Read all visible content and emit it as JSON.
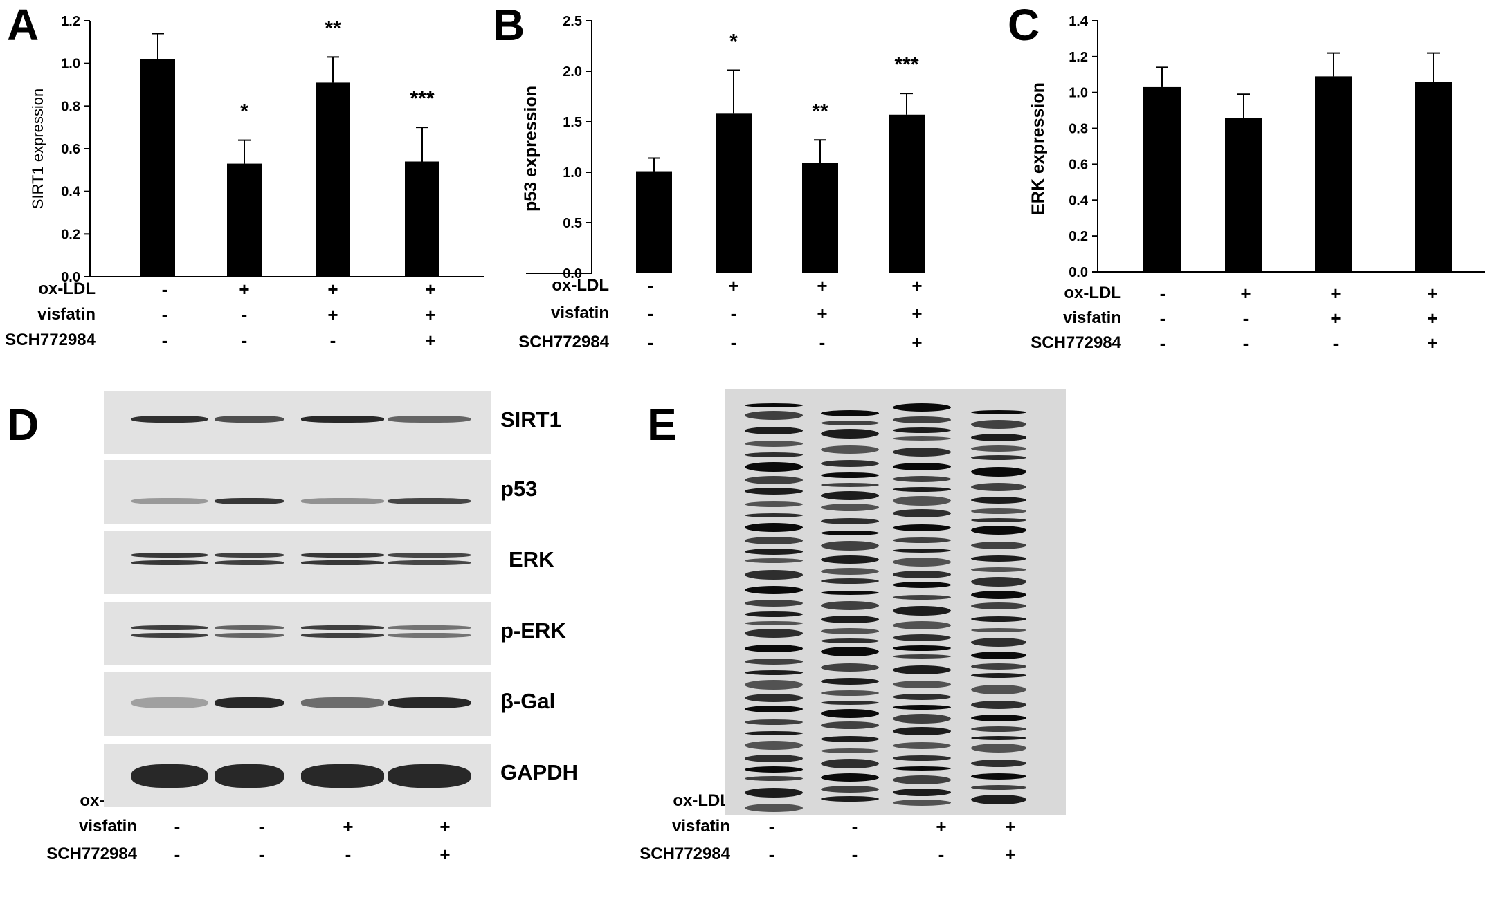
{
  "panels": {
    "A": "A",
    "B": "B",
    "C": "C",
    "D": "D",
    "E": "E"
  },
  "treatment_labels": {
    "oxldl": "ox-LDL",
    "visfatin": "visfatin",
    "sch": "SCH772984"
  },
  "treatment_signs": {
    "oxldl": [
      "-",
      "+",
      "+",
      "+"
    ],
    "visfatin": [
      "-",
      "-",
      "+",
      "+"
    ],
    "sch": [
      "-",
      "-",
      "-",
      "+"
    ]
  },
  "blot_labels": [
    "SIRT1",
    "p53",
    "ERK",
    "p-ERK",
    "β-Gal",
    "GAPDH"
  ],
  "chart_data": [
    {
      "type": "bar",
      "panel": "A",
      "ylabel": "SIRT1 expression",
      "ylim": [
        0,
        1.2
      ],
      "yticks": [
        "0.0",
        "0.2",
        "0.4",
        "0.6",
        "0.8",
        "1.0",
        "1.2"
      ],
      "values": [
        1.02,
        0.53,
        0.91,
        0.54
      ],
      "errors": [
        0.12,
        0.11,
        0.12,
        0.16
      ],
      "significance": [
        "",
        "*",
        "**",
        "***"
      ],
      "bar_color": "#000000"
    },
    {
      "type": "bar",
      "panel": "B",
      "ylabel": "p53 expression",
      "ylim": [
        0,
        2.5
      ],
      "yticks": [
        "0.0",
        "0.5",
        "1.0",
        "1.5",
        "2.0",
        "2.5"
      ],
      "values": [
        1.01,
        1.58,
        1.09,
        1.57
      ],
      "errors": [
        0.13,
        0.43,
        0.23,
        0.21
      ],
      "significance": [
        "",
        "*",
        "**",
        "***"
      ],
      "bar_color": "#000000"
    },
    {
      "type": "bar",
      "panel": "C",
      "ylabel": "ERK expression",
      "ylim": [
        0,
        1.4
      ],
      "yticks": [
        "0.0",
        "0.2",
        "0.4",
        "0.6",
        "0.8",
        "1.0",
        "1.2",
        "1.4"
      ],
      "values": [
        1.03,
        0.86,
        1.09,
        1.06
      ],
      "errors": [
        0.11,
        0.13,
        0.13,
        0.16
      ],
      "significance": [
        "",
        "",
        "",
        ""
      ],
      "bar_color": "#000000"
    }
  ]
}
